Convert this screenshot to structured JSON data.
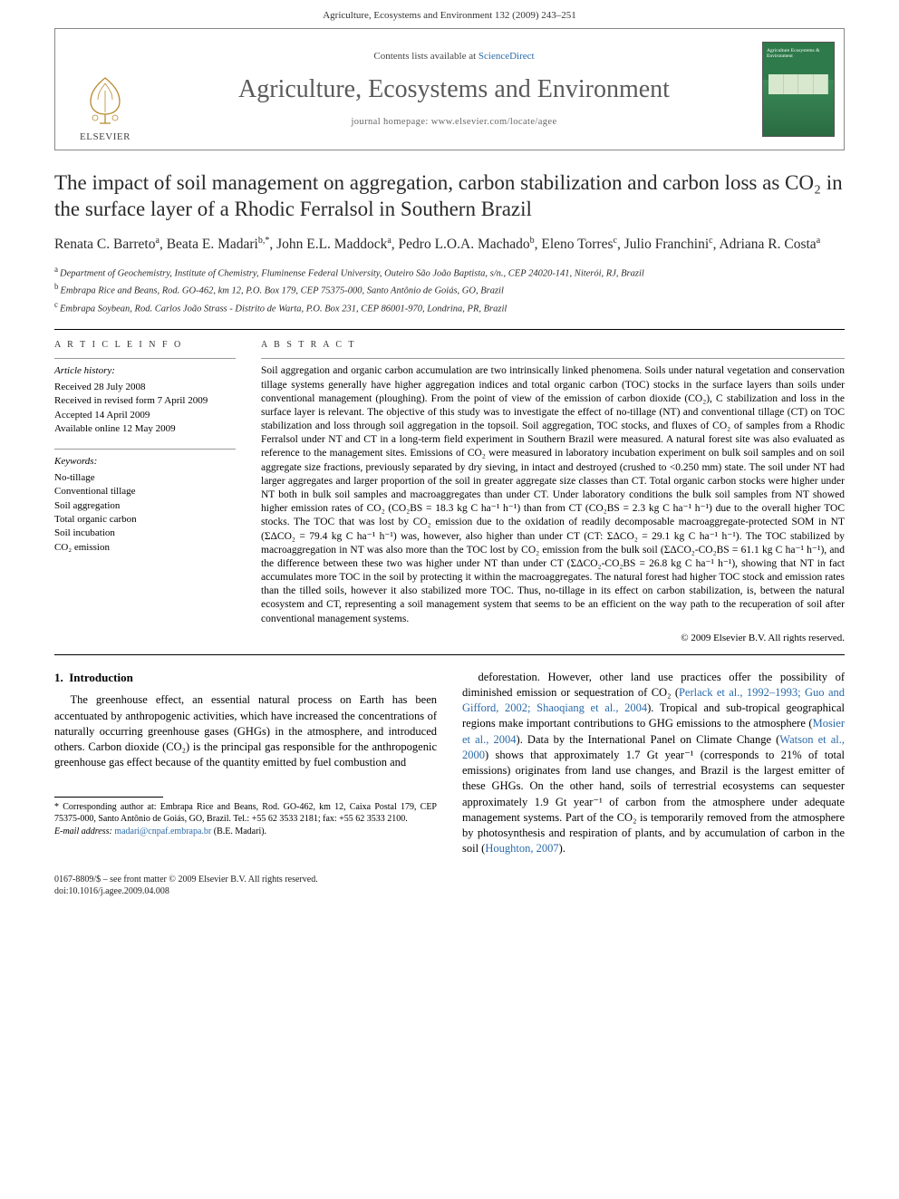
{
  "running_head": "Agriculture, Ecosystems and Environment 132 (2009) 243–251",
  "journal_box": {
    "publisher": "ELSEVIER",
    "contents_prefix": "Contents lists available at ",
    "contents_link": "ScienceDirect",
    "journal_name": "Agriculture, Ecosystems and Environment",
    "homepage_prefix": "journal homepage: ",
    "homepage_url": "www.elsevier.com/locate/agee",
    "cover_text": "Agriculture Ecosystems & Environment"
  },
  "title": "The impact of soil management on aggregation, carbon stabilization and carbon loss as CO₂ in the surface layer of a Rhodic Ferralsol in Southern Brazil",
  "authors_html": "Renata C. Barreto<sup>a</sup>, Beata E. Madari<sup>b,*</sup>, John E.L. Maddock<sup>a</sup>, Pedro L.O.A. Machado<sup>b</sup>, Eleno Torres<sup>c</sup>, Julio Franchini<sup>c</sup>, Adriana R. Costa<sup>a</sup>",
  "affiliations": [
    {
      "sup": "a",
      "text": "Department of Geochemistry, Institute of Chemistry, Fluminense Federal University, Outeiro São João Baptista, s/n., CEP 24020-141, Niterói, RJ, Brazil"
    },
    {
      "sup": "b",
      "text": "Embrapa Rice and Beans, Rod. GO-462, km 12, P.O. Box 179, CEP 75375-000, Santo Antônio de Goiás, GO, Brazil"
    },
    {
      "sup": "c",
      "text": "Embrapa Soybean, Rod. Carlos João Strass - Distrito de Warta, P.O. Box 231, CEP 86001-970, Londrina, PR, Brazil"
    }
  ],
  "article_info": {
    "heading": "A R T I C L E   I N F O",
    "history_label": "Article history:",
    "history": [
      "Received 28 July 2008",
      "Received in revised form 7 April 2009",
      "Accepted 14 April 2009",
      "Available online 12 May 2009"
    ],
    "keywords_label": "Keywords:",
    "keywords": [
      "No-tillage",
      "Conventional tillage",
      "Soil aggregation",
      "Total organic carbon",
      "Soil incubation",
      "CO₂ emission"
    ]
  },
  "abstract": {
    "heading": "A B S T R A C T",
    "text": "Soil aggregation and organic carbon accumulation are two intrinsically linked phenomena. Soils under natural vegetation and conservation tillage systems generally have higher aggregation indices and total organic carbon (TOC) stocks in the surface layers than soils under conventional management (ploughing). From the point of view of the emission of carbon dioxide (CO₂), C stabilization and loss in the surface layer is relevant. The objective of this study was to investigate the effect of no-tillage (NT) and conventional tillage (CT) on TOC stabilization and loss through soil aggregation in the topsoil. Soil aggregation, TOC stocks, and fluxes of CO₂ of samples from a Rhodic Ferralsol under NT and CT in a long-term field experiment in Southern Brazil were measured. A natural forest site was also evaluated as reference to the management sites. Emissions of CO₂ were measured in laboratory incubation experiment on bulk soil samples and on soil aggregate size fractions, previously separated by dry sieving, in intact and destroyed (crushed to <0.250 mm) state. The soil under NT had larger aggregates and larger proportion of the soil in greater aggregate size classes than CT. Total organic carbon stocks were higher under NT both in bulk soil samples and macroaggregates than under CT. Under laboratory conditions the bulk soil samples from NT showed higher emission rates of CO₂ (CO₂BS = 18.3 kg C ha⁻¹ h⁻¹) than from CT (CO₂BS = 2.3 kg C ha⁻¹ h⁻¹) due to the overall higher TOC stocks. The TOC that was lost by CO₂ emission due to the oxidation of readily decomposable macroaggregate-protected SOM in NT (ΣΔCO₂ = 79.4 kg C ha⁻¹ h⁻¹) was, however, also higher than under CT (CT: ΣΔCO₂ = 29.1 kg C ha⁻¹ h⁻¹). The TOC stabilized by macroaggregation in NT was also more than the TOC lost by CO₂ emission from the bulk soil (ΣΔCO₂-CO₂BS = 61.1 kg C ha⁻¹ h⁻¹), and the difference between these two was higher under NT than under CT (ΣΔCO₂-CO₂BS = 26.8 kg C ha⁻¹ h⁻¹), showing that NT in fact accumulates more TOC in the soil by protecting it within the macroaggregates. The natural forest had higher TOC stock and emission rates than the tilled soils, however it also stabilized more TOC. Thus, no-tillage in its effect on carbon stabilization, is, between the natural ecosystem and CT, representing a soil management system that seems to be an efficient on the way path to the recuperation of soil after conventional management systems.",
    "copyright": "© 2009 Elsevier B.V. All rights reserved."
  },
  "body": {
    "section_no": "1.",
    "section_title": "Introduction",
    "col1": "The greenhouse effect, an essential natural process on Earth has been accentuated by anthropogenic activities, which have increased the concentrations of naturally occurring greenhouse gases (GHGs) in the atmosphere, and introduced others. Carbon dioxide (CO₂) is the principal gas responsible for the anthropogenic greenhouse gas effect because of the quantity emitted by fuel combustion and",
    "col2_a": "deforestation. However, other land use practices offer the possibility of diminished emission or sequestration of CO₂ (",
    "ref1": "Perlack et al., 1992–1993; Guo and Gifford, 2002; Shaoqiang et al., 2004",
    "col2_b": "). Tropical and sub-tropical geographical regions make important contributions to GHG emissions to the atmosphere (",
    "ref2": "Mosier et al., 2004",
    "col2_c": "). Data by the International Panel on Climate Change (",
    "ref3": "Watson et al., 2000",
    "col2_d": ") shows that approximately 1.7 Gt year⁻¹ (corresponds to 21% of total emissions) originates from land use changes, and Brazil is the largest emitter of these GHGs. On the other hand, soils of terrestrial ecosystems can sequester approximately 1.9 Gt year⁻¹ of carbon from the atmosphere under adequate management systems. Part of the CO₂ is temporarily removed from the atmosphere by photosynthesis and respiration of plants, and by accumulation of carbon in the soil (",
    "ref4": "Houghton, 2007",
    "col2_e": ")."
  },
  "footnotes": {
    "corr": "* Corresponding author at: Embrapa Rice and Beans, Rod. GO-462, km 12, Caixa Postal 179, CEP 75375-000, Santo Antônio de Goiás, GO, Brazil. Tel.: +55 62 3533 2181; fax: +55 62 3533 2100.",
    "email_label": "E-mail address:",
    "email": "madari@cnpaf.embrapa.br",
    "email_person": "(B.E. Madari)."
  },
  "footer": {
    "line1": "0167-8809/$ – see front matter © 2009 Elsevier B.V. All rights reserved.",
    "line2": "doi:10.1016/j.agee.2009.04.008"
  },
  "colors": {
    "link": "#2b6aa8",
    "text": "#000000",
    "muted": "#5a5a5a",
    "cover_green": "#2e7a4a"
  }
}
